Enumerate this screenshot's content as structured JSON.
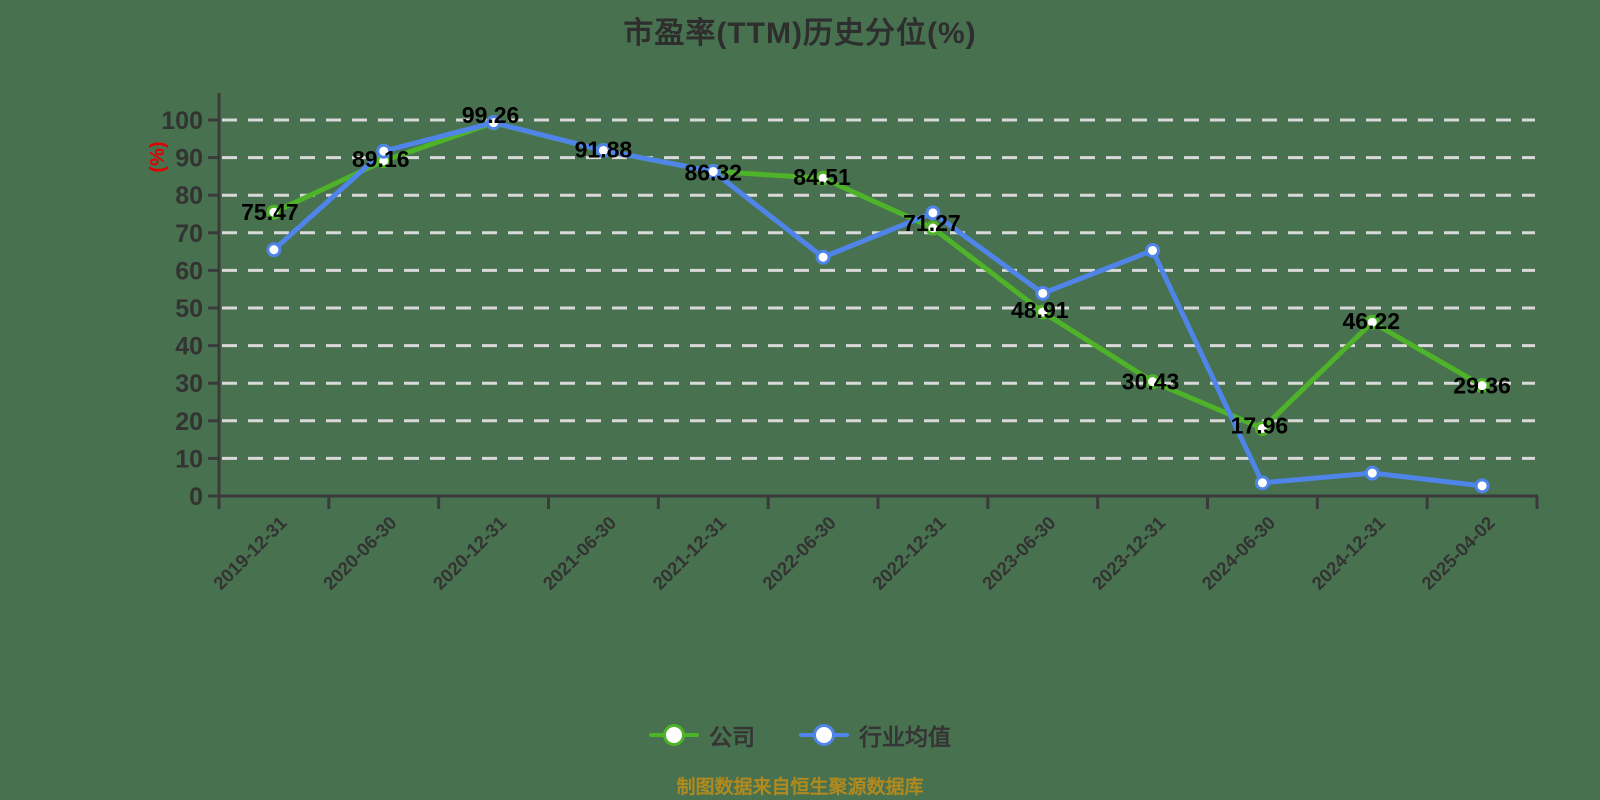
{
  "title": "市盈率(TTM)历史分位(%)",
  "y_axis_unit": "(%)",
  "footer": "制图数据来自恒生聚源数据库",
  "colors": {
    "background": "#48714f",
    "company_line": "#4fb32a",
    "industry_line": "#4f85e8",
    "grid": "#d9d9d9",
    "axis": "#3a3a3a",
    "tick_label": "#333333",
    "title_text": "#2e2e2e",
    "data_label": "#000000",
    "y_unit_label": "#e00000",
    "footer_text": "#b08a1e",
    "marker_fill": "#ffffff"
  },
  "chart_data": {
    "type": "line",
    "title": "市盈率(TTM)历史分位(%)",
    "ylabel": "(%)",
    "xlabel": "",
    "ylim": [
      0,
      100
    ],
    "y_ticks": [
      0,
      10,
      20,
      30,
      40,
      50,
      60,
      70,
      80,
      90,
      100
    ],
    "grid": "horizontal-dashed",
    "legend_position": "bottom",
    "categories": [
      "2019-12-31",
      "2020-06-30",
      "2020-12-31",
      "2021-06-30",
      "2021-12-31",
      "2022-06-30",
      "2022-12-31",
      "2023-06-30",
      "2023-12-31",
      "2024-06-30",
      "2024-12-31",
      "2025-04-02"
    ],
    "series": [
      {
        "name": "公司",
        "color": "#4fb32a",
        "data_labels_visible": true,
        "values": [
          75.47,
          89.16,
          99.26,
          91.88,
          86.32,
          84.51,
          71.27,
          48.91,
          30.43,
          17.96,
          46.22,
          29.36
        ]
      },
      {
        "name": "行业均值",
        "color": "#4f85e8",
        "data_labels_visible": false,
        "values": [
          65.5,
          91.7,
          99.3,
          91.9,
          86.3,
          63.5,
          75.3,
          53.9,
          65.3,
          3.5,
          6.1,
          2.7
        ]
      }
    ]
  }
}
